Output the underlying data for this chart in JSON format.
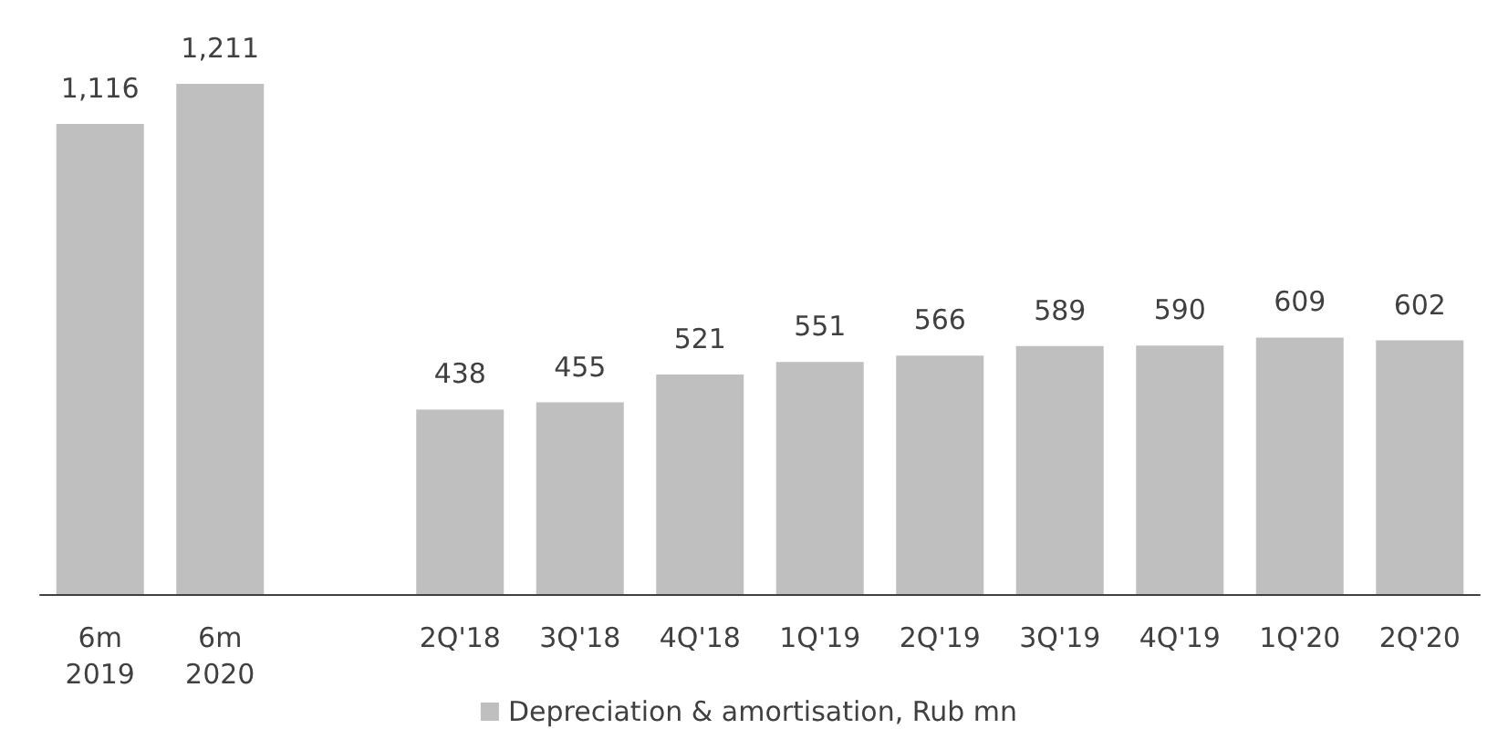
{
  "chart_data": {
    "type": "bar",
    "categories": [
      "6m 2019",
      "6m 2020",
      null,
      "2Q'18",
      "3Q'18",
      "4Q'18",
      "1Q'19",
      "2Q'19",
      "3Q'19",
      "4Q'19",
      "1Q'20",
      "2Q'20"
    ],
    "series": [
      {
        "name": "Depreciation & amortisation, Rub mn",
        "color": "#bfbfbf",
        "values": [
          1116,
          1211,
          null,
          438,
          455,
          521,
          551,
          566,
          589,
          590,
          609,
          602
        ],
        "value_labels": [
          "1,116",
          "1,211",
          null,
          "438",
          "455",
          "521",
          "551",
          "566",
          "589",
          "590",
          "609",
          "602"
        ]
      }
    ],
    "legend": "bottom"
  }
}
